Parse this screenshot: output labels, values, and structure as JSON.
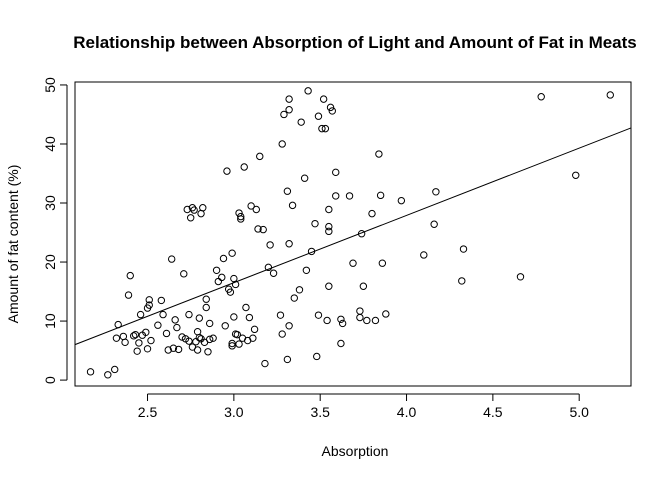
{
  "chart_data": {
    "type": "scatter",
    "title": "Relationship between Absorption of Light and Amount of Fat in Meats",
    "xlabel": "Absorption",
    "ylabel": "Amount of fat content (%)",
    "xlim": [
      2.08,
      5.3
    ],
    "ylim": [
      -1.0,
      50.5
    ],
    "x_ticks": [
      2.5,
      3.0,
      3.5,
      4.0,
      4.5,
      5.0
    ],
    "x_tick_labels": [
      "2.5",
      "3.0",
      "3.5",
      "4.0",
      "4.5",
      "5.0"
    ],
    "y_ticks": [
      0,
      10,
      20,
      30,
      40,
      50
    ],
    "y_tick_labels": [
      "0",
      "10",
      "20",
      "30",
      "40",
      "50"
    ],
    "grid": false,
    "legend": "none",
    "marker": "open-circle",
    "fit_line": {
      "type": "linear",
      "intercept": -17.7,
      "slope": 11.4
    },
    "points": [
      [
        2.17,
        1.4
      ],
      [
        2.27,
        0.9
      ],
      [
        2.31,
        1.8
      ],
      [
        2.32,
        7.1
      ],
      [
        2.33,
        9.4
      ],
      [
        2.36,
        7.4
      ],
      [
        2.37,
        6.4
      ],
      [
        2.39,
        14.4
      ],
      [
        2.4,
        17.7
      ],
      [
        2.42,
        7.5
      ],
      [
        2.43,
        7.7
      ],
      [
        2.44,
        4.9
      ],
      [
        2.45,
        6.3
      ],
      [
        2.46,
        11.1
      ],
      [
        2.47,
        7.6
      ],
      [
        2.49,
        8.1
      ],
      [
        2.5,
        12.2
      ],
      [
        2.51,
        13.6
      ],
      [
        2.51,
        12.7
      ],
      [
        2.52,
        6.7
      ],
      [
        2.5,
        5.3
      ],
      [
        2.56,
        9.3
      ],
      [
        2.58,
        13.5
      ],
      [
        2.59,
        11.1
      ],
      [
        2.61,
        7.9
      ],
      [
        2.62,
        5.1
      ],
      [
        2.64,
        20.5
      ],
      [
        2.65,
        5.4
      ],
      [
        2.66,
        10.2
      ],
      [
        2.67,
        8.9
      ],
      [
        2.68,
        5.2
      ],
      [
        2.7,
        7.3
      ],
      [
        2.71,
        18.0
      ],
      [
        2.72,
        7.0
      ],
      [
        2.73,
        28.9
      ],
      [
        2.74,
        11.1
      ],
      [
        2.74,
        6.6
      ],
      [
        2.75,
        27.5
      ],
      [
        2.76,
        29.2
      ],
      [
        2.76,
        5.6
      ],
      [
        2.77,
        28.8
      ],
      [
        2.78,
        6.5
      ],
      [
        2.79,
        5.1
      ],
      [
        2.79,
        8.2
      ],
      [
        2.8,
        7.2
      ],
      [
        2.8,
        10.5
      ],
      [
        2.81,
        28.2
      ],
      [
        2.81,
        7.0
      ],
      [
        2.82,
        29.2
      ],
      [
        2.83,
        6.4
      ],
      [
        2.84,
        12.3
      ],
      [
        2.84,
        13.7
      ],
      [
        2.85,
        4.8
      ],
      [
        2.86,
        9.6
      ],
      [
        2.86,
        6.9
      ],
      [
        2.88,
        7.1
      ],
      [
        2.9,
        18.6
      ],
      [
        2.91,
        16.7
      ],
      [
        2.93,
        17.4
      ],
      [
        2.94,
        20.6
      ],
      [
        2.95,
        9.2
      ],
      [
        2.96,
        35.4
      ],
      [
        2.97,
        15.4
      ],
      [
        2.98,
        14.9
      ],
      [
        2.99,
        21.5
      ],
      [
        2.99,
        6.2
      ],
      [
        2.99,
        5.8
      ],
      [
        3.0,
        10.7
      ],
      [
        3.0,
        17.2
      ],
      [
        3.01,
        7.8
      ],
      [
        3.01,
        16.2
      ],
      [
        3.02,
        7.7
      ],
      [
        3.03,
        6.1
      ],
      [
        3.03,
        28.3
      ],
      [
        3.04,
        27.7
      ],
      [
        3.04,
        27.3
      ],
      [
        3.05,
        7.1
      ],
      [
        3.06,
        36.1
      ],
      [
        3.07,
        12.3
      ],
      [
        3.08,
        6.7
      ],
      [
        3.09,
        10.6
      ],
      [
        3.1,
        29.5
      ],
      [
        3.11,
        7.1
      ],
      [
        3.12,
        8.6
      ],
      [
        3.13,
        28.9
      ],
      [
        3.14,
        25.6
      ],
      [
        3.15,
        37.9
      ],
      [
        3.17,
        25.5
      ],
      [
        3.18,
        2.8
      ],
      [
        3.2,
        19.1
      ],
      [
        3.21,
        22.9
      ],
      [
        3.23,
        18.1
      ],
      [
        3.27,
        11.0
      ],
      [
        3.28,
        7.8
      ],
      [
        3.28,
        40.0
      ],
      [
        3.29,
        45.0
      ],
      [
        3.31,
        32.0
      ],
      [
        3.31,
        3.5
      ],
      [
        3.32,
        23.1
      ],
      [
        3.32,
        47.6
      ],
      [
        3.32,
        45.8
      ],
      [
        3.32,
        9.2
      ],
      [
        3.34,
        29.6
      ],
      [
        3.35,
        13.9
      ],
      [
        3.38,
        15.3
      ],
      [
        3.39,
        43.7
      ],
      [
        3.41,
        34.2
      ],
      [
        3.42,
        18.6
      ],
      [
        3.43,
        49.0
      ],
      [
        3.45,
        21.8
      ],
      [
        3.47,
        26.5
      ],
      [
        3.48,
        4.0
      ],
      [
        3.49,
        11.0
      ],
      [
        3.49,
        44.7
      ],
      [
        3.51,
        42.6
      ],
      [
        3.52,
        47.6
      ],
      [
        3.53,
        42.6
      ],
      [
        3.54,
        10.1
      ],
      [
        3.55,
        15.9
      ],
      [
        3.55,
        28.9
      ],
      [
        3.55,
        25.2
      ],
      [
        3.55,
        26.0
      ],
      [
        3.56,
        46.2
      ],
      [
        3.57,
        45.6
      ],
      [
        3.59,
        35.2
      ],
      [
        3.59,
        31.2
      ],
      [
        3.62,
        10.3
      ],
      [
        3.62,
        6.2
      ],
      [
        3.63,
        9.6
      ],
      [
        3.67,
        31.2
      ],
      [
        3.69,
        19.8
      ],
      [
        3.73,
        10.6
      ],
      [
        3.73,
        11.7
      ],
      [
        3.74,
        24.8
      ],
      [
        3.75,
        15.9
      ],
      [
        3.77,
        10.1
      ],
      [
        3.8,
        28.2
      ],
      [
        3.82,
        10.1
      ],
      [
        3.84,
        38.3
      ],
      [
        3.85,
        31.3
      ],
      [
        3.86,
        19.8
      ],
      [
        3.88,
        11.2
      ],
      [
        3.97,
        30.4
      ],
      [
        4.1,
        21.2
      ],
      [
        4.16,
        26.4
      ],
      [
        4.17,
        31.9
      ],
      [
        4.32,
        16.8
      ],
      [
        4.33,
        22.2
      ],
      [
        4.66,
        17.5
      ],
      [
        4.78,
        48.0
      ],
      [
        4.98,
        34.7
      ],
      [
        5.18,
        48.3
      ]
    ]
  }
}
